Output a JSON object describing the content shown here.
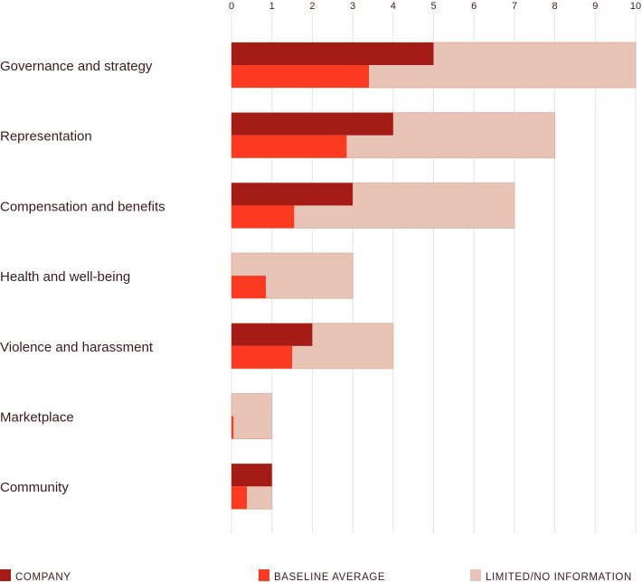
{
  "chart_data": {
    "type": "bar",
    "orientation": "horizontal",
    "categories": [
      "Governance and strategy",
      "Representation",
      "Compensation and benefits",
      "Health and well-being",
      "Violence and harassment",
      "Marketplace",
      "Community"
    ],
    "max_possible": [
      10,
      8,
      7,
      3,
      4,
      1,
      1
    ],
    "series": [
      {
        "name": "COMPANY",
        "values": [
          5,
          4,
          3,
          0,
          2,
          0,
          1
        ]
      },
      {
        "name": "BASELINE AVERAGE",
        "values": [
          3.4,
          2.85,
          1.55,
          0.85,
          1.5,
          0.05,
          0.38
        ]
      }
    ],
    "limited_info_label": "LIMITED/NO INFORMATION",
    "xlim": [
      0,
      10
    ],
    "xticks": [
      0,
      1,
      2,
      3,
      4,
      5,
      6,
      7,
      8,
      9,
      10
    ],
    "x_axis_position": "top",
    "grid": true,
    "legend_position": "bottom",
    "colors": {
      "company": "#a51c16",
      "baseline": "#fb3a21",
      "limited": "#e8c4b7",
      "limited_border": "#ddb5a7",
      "grid": "#e3e3e3",
      "text": "#3a1a1a"
    }
  }
}
